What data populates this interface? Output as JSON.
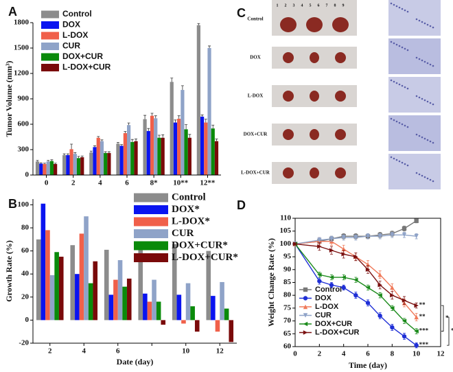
{
  "chart_data": [
    {
      "type": "bar",
      "panel": "A",
      "ylabel": "Tumor Volume (mm³)",
      "categories": [
        "0",
        "2",
        "4",
        "6",
        "8*",
        "10**",
        "12**"
      ],
      "ylim": [
        0,
        1800
      ],
      "yticks": [
        0,
        300,
        600,
        900,
        1200,
        1500,
        1800
      ],
      "legend": "upper left",
      "series": [
        {
          "name": "Control",
          "color": "#8c8c8c",
          "values": [
            160,
            235,
            265,
            370,
            660,
            1100,
            1770
          ],
          "errors": [
            12,
            15,
            18,
            15,
            45,
            45,
            20
          ]
        },
        {
          "name": "DOX",
          "color": "#0a14f0",
          "values": [
            135,
            235,
            330,
            345,
            520,
            620,
            690
          ],
          "errors": [
            10,
            15,
            15,
            15,
            30,
            30,
            20
          ]
        },
        {
          "name": "L-DOX",
          "color": "#f0604a",
          "values": [
            130,
            305,
            440,
            495,
            700,
            665,
            620
          ],
          "errors": [
            10,
            60,
            15,
            20,
            30,
            35,
            40
          ]
        },
        {
          "name": "CUR",
          "color": "#8fa3c8",
          "values": [
            160,
            250,
            400,
            590,
            670,
            1005,
            1500
          ],
          "errors": [
            12,
            15,
            15,
            25,
            30,
            50,
            25
          ]
        },
        {
          "name": "DOX+CUR",
          "color": "#0a8a0a",
          "values": [
            165,
            200,
            260,
            390,
            440,
            540,
            550
          ],
          "errors": [
            15,
            20,
            15,
            30,
            30,
            55,
            40
          ]
        },
        {
          "name": "L-DOX+CUR",
          "color": "#7a0a0a",
          "values": [
            130,
            210,
            260,
            400,
            440,
            440,
            400
          ],
          "errors": [
            10,
            15,
            15,
            25,
            35,
            40,
            25
          ]
        }
      ]
    },
    {
      "type": "bar",
      "panel": "B",
      "ylabel": "Growth Rate (%)",
      "xlabel": "Date (day)",
      "categories": [
        "2",
        "4",
        "6",
        null,
        "10",
        "12"
      ],
      "ylim": [
        -20,
        105
      ],
      "yticks": [
        -20,
        0,
        20,
        40,
        60,
        80,
        100
      ],
      "legend": "upper right",
      "series": [
        {
          "name": "Control",
          "color": "#8c8c8c",
          "values": [
            70,
            65,
            61,
            62,
            66,
            60
          ]
        },
        {
          "name": "DOX*",
          "color": "#0a14f0",
          "values": [
            101,
            40,
            22,
            23,
            22,
            21
          ]
        },
        {
          "name": "L-DOX*",
          "color": "#f0604a",
          "values": [
            78,
            75,
            35,
            16,
            -3,
            -10
          ]
        },
        {
          "name": "CUR",
          "color": "#8fa3c8",
          "values": [
            39,
            90,
            52,
            35,
            32,
            33
          ]
        },
        {
          "name": "DOX+CUR*",
          "color": "#0a8a0a",
          "values": [
            59,
            32,
            29,
            16,
            12,
            10
          ]
        },
        {
          "name": "L-DOX+CUR*",
          "color": "#7a0a0a",
          "values": [
            55,
            51,
            36,
            -4,
            -10,
            -19
          ]
        }
      ]
    },
    {
      "type": "line",
      "panel": "D",
      "ylabel": "Weight Change Rate (%)",
      "xlabel": "Time (day)",
      "x": [
        0,
        2,
        3,
        4,
        5,
        6,
        7,
        8,
        9,
        10
      ],
      "xlim": [
        0,
        12
      ],
      "xticks": [
        0,
        2,
        4,
        6,
        8,
        10,
        12
      ],
      "ylim": [
        60,
        110
      ],
      "yticks": [
        60,
        65,
        70,
        75,
        80,
        85,
        90,
        95,
        100,
        105,
        110
      ],
      "legend": "lower left",
      "annotations": [
        "*",
        "*"
      ],
      "series": [
        {
          "name": "Control",
          "color": "#777777",
          "marker": "square",
          "values": [
            100,
            101,
            102,
            103,
            103,
            103,
            103.5,
            104,
            106,
            109
          ],
          "errors": [
            0.5,
            1,
            1,
            1,
            1,
            1,
            1,
            1,
            1,
            0.8
          ]
        },
        {
          "name": "DOX",
          "color": "#1f2fd6",
          "marker": "circle",
          "annotation": "***",
          "values": [
            100,
            85.5,
            84,
            83,
            80,
            77,
            72,
            67.5,
            64,
            60.5
          ],
          "errors": [
            0.5,
            1.2,
            1,
            1,
            1.2,
            1.2,
            1.2,
            1.2,
            1.2,
            1
          ]
        },
        {
          "name": "L-DOX",
          "color": "#f07a5a",
          "marker": "triangle",
          "annotation": "**",
          "values": [
            100,
            101,
            101,
            98,
            95,
            92,
            88,
            83,
            77,
            71.5
          ],
          "errors": [
            0.5,
            1.5,
            1.5,
            1.5,
            1.5,
            1.5,
            1.5,
            1.5,
            1.5,
            1.5
          ]
        },
        {
          "name": "CUR",
          "color": "#8fa3c8",
          "marker": "down",
          "values": [
            100,
            101.5,
            102,
            102.5,
            102.5,
            103,
            103,
            103.5,
            103.5,
            103
          ],
          "errors": [
            0.5,
            1,
            1,
            1,
            1,
            1,
            1,
            1,
            1,
            1
          ]
        },
        {
          "name": "DOX+CUR",
          "color": "#1a8a1a",
          "marker": "left",
          "annotation": "***",
          "values": [
            100,
            88,
            87,
            87,
            86,
            83,
            80,
            75,
            70,
            66
          ],
          "errors": [
            0.5,
            1,
            1,
            1,
            1,
            1,
            1,
            1,
            1,
            1
          ]
        },
        {
          "name": "L-DOX+CUR",
          "color": "#7a1010",
          "marker": "right",
          "annotation": "**",
          "values": [
            100,
            99,
            97.5,
            96,
            95,
            90,
            84,
            80,
            78,
            76
          ],
          "errors": [
            0.5,
            1.5,
            1.5,
            1.5,
            1.5,
            1.5,
            1.5,
            1.5,
            1.5,
            1
          ]
        }
      ]
    }
  ],
  "image_panel": {
    "panel": "C",
    "ruler": [
      "1",
      "2",
      "3",
      "4",
      "5",
      "6",
      "7",
      "8",
      "9"
    ],
    "rows": [
      "Control",
      "DOX",
      "L-DOX",
      "DOX+CUR",
      "L-DOX+CUR"
    ]
  }
}
